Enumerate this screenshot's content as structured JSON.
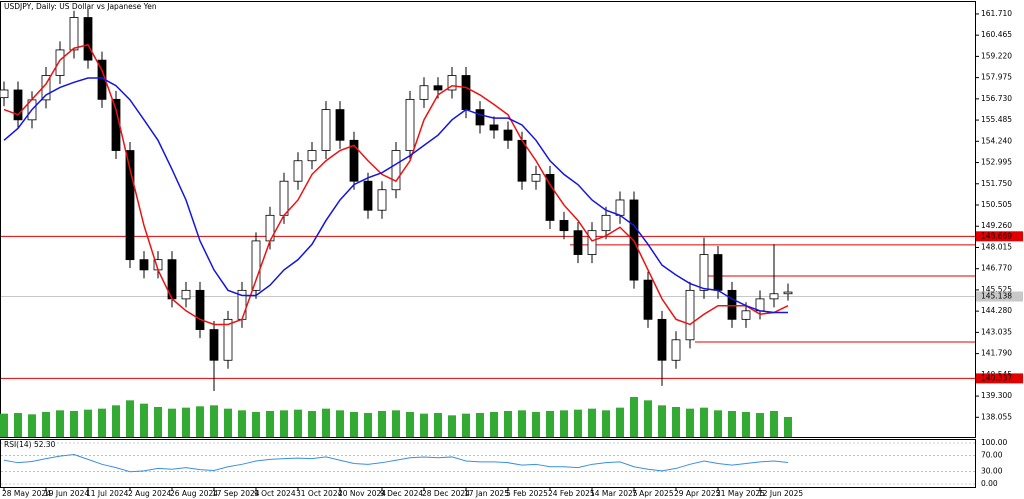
{
  "chart_data": {
    "type": "candlestick",
    "title": "USDJPY, Daily:  US Dollar vs Japanese Yen",
    "open": [
      156.8,
      157.25,
      155.5,
      156.67,
      158.1,
      159.6,
      161.5,
      159.0,
      156.7,
      153.7,
      147.3,
      146.7,
      147.3,
      145.0,
      145.5,
      143.2,
      141.4,
      143.8,
      145.5,
      148.4,
      149.9,
      151.9,
      153.1,
      153.7,
      156.1,
      154.3,
      151.9,
      150.2,
      151.4,
      153.7,
      156.7,
      157.5,
      157.25,
      158.1,
      156.1,
      155.2,
      154.9,
      154.3,
      151.9,
      152.3,
      149.6,
      149.0,
      147.6,
      149.0,
      149.9,
      150.8,
      146.1,
      143.8,
      141.4,
      142.6,
      145.5,
      147.6,
      145.5,
      143.8,
      144.3,
      145.0,
      145.3
    ],
    "high": [
      157.75,
      157.75,
      157.17,
      158.6,
      160.1,
      161.9,
      162.0,
      159.5,
      157.2,
      154.2,
      147.8,
      147.8,
      147.8,
      146.0,
      146.0,
      143.7,
      144.3,
      146.0,
      148.9,
      150.4,
      152.4,
      153.6,
      154.2,
      156.6,
      156.6,
      154.8,
      152.4,
      151.9,
      154.2,
      157.2,
      158.0,
      158.0,
      158.6,
      158.6,
      156.6,
      155.7,
      155.4,
      154.8,
      152.8,
      152.8,
      150.1,
      149.5,
      149.5,
      150.4,
      151.3,
      151.3,
      146.6,
      144.3,
      143.1,
      146.0,
      148.6,
      148.1,
      146.0,
      144.8,
      145.5,
      148.2,
      145.9
    ],
    "low": [
      156.3,
      155.0,
      155.0,
      156.17,
      157.6,
      159.1,
      158.5,
      156.2,
      153.2,
      146.8,
      146.2,
      146.2,
      144.5,
      144.5,
      142.7,
      139.6,
      140.9,
      143.3,
      145.0,
      147.9,
      149.4,
      151.4,
      152.6,
      153.2,
      153.8,
      151.4,
      149.7,
      149.7,
      150.9,
      153.2,
      156.2,
      156.75,
      156.75,
      155.6,
      154.7,
      154.4,
      153.8,
      151.4,
      151.4,
      149.1,
      148.5,
      147.1,
      147.1,
      148.5,
      149.4,
      145.6,
      143.3,
      139.9,
      140.9,
      142.1,
      145.0,
      145.0,
      143.3,
      143.3,
      143.8,
      144.5,
      144.9
    ],
    "close": [
      157.25,
      155.5,
      156.67,
      158.1,
      159.6,
      161.5,
      159.0,
      156.7,
      153.7,
      147.3,
      146.7,
      147.3,
      145.0,
      145.5,
      143.2,
      141.4,
      143.8,
      145.5,
      148.4,
      149.9,
      151.9,
      153.1,
      153.7,
      156.1,
      154.3,
      151.9,
      150.2,
      151.4,
      153.7,
      156.7,
      157.5,
      157.25,
      158.1,
      156.1,
      155.2,
      154.9,
      154.3,
      151.9,
      152.3,
      149.6,
      149.0,
      147.6,
      149.0,
      149.9,
      150.8,
      146.1,
      143.8,
      141.4,
      142.6,
      145.5,
      147.6,
      145.5,
      143.8,
      144.3,
      145.0,
      145.3,
      145.4
    ],
    "series": [
      {
        "color": "#ee1111",
        "values": [
          156.1,
          155.8,
          156.7,
          157.6,
          159.0,
          159.7,
          159.9,
          158.4,
          156.1,
          152.6,
          149.3,
          146.7,
          145.0,
          144.3,
          143.8,
          143.5,
          143.5,
          143.8,
          146.1,
          148.4,
          149.9,
          150.8,
          152.3,
          153.1,
          153.7,
          154.0,
          153.1,
          152.3,
          151.9,
          153.1,
          155.5,
          156.96,
          157.5,
          157.4,
          156.96,
          156.4,
          155.8,
          154.3,
          153.1,
          151.7,
          150.5,
          149.6,
          148.4,
          148.7,
          149.2,
          148.4,
          146.7,
          145.0,
          143.8,
          143.5,
          144.1,
          144.6,
          144.6,
          144.6,
          144.1,
          144.2,
          144.6
        ]
      },
      {
        "color": "#1515e0",
        "values": [
          154.3,
          155.0,
          156.1,
          156.96,
          157.4,
          157.7,
          157.95,
          157.95,
          157.5,
          156.67,
          155.5,
          154.3,
          152.6,
          150.8,
          148.4,
          146.7,
          145.5,
          145.2,
          145.2,
          145.8,
          146.7,
          147.3,
          148.2,
          149.6,
          150.8,
          151.7,
          152.1,
          152.4,
          152.9,
          153.4,
          154.0,
          154.6,
          155.5,
          156.1,
          155.8,
          155.6,
          155.6,
          155.2,
          154.3,
          153.1,
          152.3,
          151.7,
          150.8,
          150.2,
          149.9,
          149.3,
          148.2,
          146.98,
          146.4,
          145.9,
          145.6,
          145.5,
          145.0,
          144.6,
          144.3,
          144.2,
          144.2
        ]
      }
    ],
    "volume": {
      "color": "#33aa33",
      "values": [
        70,
        72,
        68,
        75,
        80,
        78,
        82,
        85,
        95,
        110,
        100,
        90,
        85,
        88,
        92,
        95,
        85,
        80,
        75,
        78,
        80,
        82,
        78,
        85,
        80,
        75,
        72,
        78,
        80,
        75,
        70,
        72,
        65,
        70,
        72,
        75,
        78,
        80,
        75,
        78,
        80,
        82,
        85,
        80,
        88,
        120,
        110,
        95,
        90,
        85,
        88,
        80,
        78,
        75,
        72,
        78,
        60
      ]
    },
    "hlines": [
      {
        "value": 148.669,
        "color": "#e00000",
        "tag": true
      },
      {
        "value": 148.17,
        "color": "#e00000",
        "tag": false
      },
      {
        "value": 146.34,
        "color": "#e00000",
        "tag": false
      },
      {
        "value": 145.138,
        "color": "#c8c8c8",
        "tag": true
      },
      {
        "value": 142.47,
        "color": "#e00000",
        "tag": false
      },
      {
        "value": 140.337,
        "color": "#e00000",
        "tag": true
      }
    ],
    "ylim": [
      136.9,
      162.41
    ],
    "yticks": [
      {
        "value": 161.71,
        "label": "161.710"
      },
      {
        "value": 160.465,
        "label": "160.465"
      },
      {
        "value": 159.22,
        "label": "159.220"
      },
      {
        "value": 157.975,
        "label": "157.975"
      },
      {
        "value": 156.73,
        "label": "156.730"
      },
      {
        "value": 155.485,
        "label": "155.485"
      },
      {
        "value": 154.24,
        "label": "154.240"
      },
      {
        "value": 152.995,
        "label": "152.995"
      },
      {
        "value": 151.75,
        "label": "151.750"
      },
      {
        "value": 150.505,
        "label": "150.505"
      },
      {
        "value": 149.26,
        "label": "149.260"
      },
      {
        "value": 148.015,
        "label": "148.015"
      },
      {
        "value": 146.77,
        "label": "146.770"
      },
      {
        "value": 145.525,
        "label": "145.525"
      },
      {
        "value": 144.28,
        "label": "144.280"
      },
      {
        "value": 143.035,
        "label": "143.035"
      },
      {
        "value": 141.79,
        "label": "141.790"
      },
      {
        "value": 140.545,
        "label": "140.545"
      },
      {
        "value": 139.3,
        "label": "139.300"
      },
      {
        "value": 138.055,
        "label": "138.055"
      }
    ],
    "xticks": [
      {
        "value": 0,
        "label": "28 May 2024"
      },
      {
        "value": 3,
        "label": "19 Jun 2024"
      },
      {
        "value": 6,
        "label": "11 Jul 2024"
      },
      {
        "value": 9,
        "label": "2 Aug 2024"
      },
      {
        "value": 12,
        "label": "26 Aug 2024"
      },
      {
        "value": 15,
        "label": "17 Sep 2024"
      },
      {
        "value": 18,
        "label": "9 Oct 2024"
      },
      {
        "value": 21,
        "label": "31 Oct 2024"
      },
      {
        "value": 24,
        "label": "20 Nov 2024"
      },
      {
        "value": 27,
        "label": "9 Dec 2024"
      },
      {
        "value": 30,
        "label": "28 Dec 2024"
      },
      {
        "value": 33,
        "label": "17 Jan 2025"
      },
      {
        "value": 36,
        "label": "5 Feb 2025"
      },
      {
        "value": 39,
        "label": "24 Feb 2025"
      },
      {
        "value": 42,
        "label": "14 Mar 2025"
      },
      {
        "value": 45,
        "label": "7 Apr 2025"
      },
      {
        "value": 48,
        "label": "29 Apr 2025"
      },
      {
        "value": 51,
        "label": "21 May 2025"
      },
      {
        "value": 54,
        "label": "12 Jun 2025"
      }
    ],
    "rsi": {
      "title": "RSI(14) 52.30",
      "color": "#3a8fe0",
      "values": [
        58,
        52,
        55,
        62,
        68,
        72,
        60,
        48,
        40,
        30,
        32,
        38,
        36,
        40,
        35,
        33,
        42,
        48,
        56,
        60,
        62,
        63,
        62,
        66,
        58,
        50,
        48,
        52,
        58,
        64,
        66,
        64,
        66,
        56,
        54,
        54,
        52,
        46,
        48,
        42,
        42,
        40,
        48,
        52,
        54,
        42,
        36,
        32,
        38,
        48,
        56,
        50,
        46,
        50,
        54,
        56,
        52.3
      ],
      "ylim": [
        0,
        100
      ],
      "yticks": [
        {
          "value": 100,
          "label": "100.00"
        },
        {
          "value": 70,
          "label": "70.00"
        },
        {
          "value": 30,
          "label": "30.00"
        },
        {
          "value": 0,
          "label": "0.00"
        }
      ]
    }
  }
}
